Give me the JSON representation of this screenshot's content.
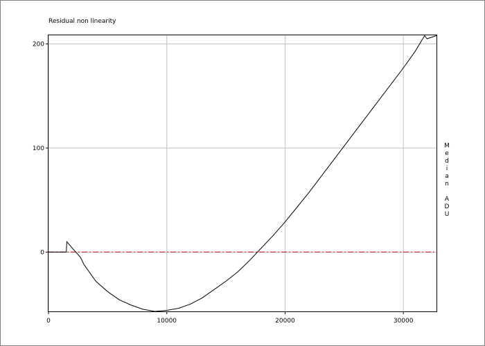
{
  "chart_data": {
    "type": "line",
    "title": "Residual non linearity",
    "y_label": "Median ADU",
    "x": [
      0,
      1500,
      1550,
      2000,
      2700,
      3000,
      4000,
      5000,
      6000,
      7000,
      8000,
      9000,
      10000,
      11000,
      12000,
      13000,
      14000,
      15000,
      16000,
      17000,
      18000,
      19000,
      20000,
      21000,
      22000,
      23000,
      24000,
      25000,
      26000,
      27000,
      28000,
      29000,
      30000,
      31000,
      31800,
      32000,
      32800
    ],
    "series": [
      {
        "color": "#000000",
        "values": [
          0,
          0,
          10,
          4,
          -5,
          -12,
          -28,
          -38,
          -46,
          -51,
          -55,
          -57,
          -56,
          -54,
          -50,
          -44,
          -36,
          -28,
          -19,
          -8,
          4,
          16,
          29,
          43,
          57,
          72,
          87,
          102,
          117,
          132,
          147,
          162,
          177,
          193,
          208,
          205,
          208
        ]
      }
    ],
    "reference_line": {
      "value": 0,
      "color": "#c00000"
    },
    "xlim": [
      0,
      32800
    ],
    "ylim": [
      -57,
      209
    ],
    "xticks": [
      0,
      10000,
      20000,
      30000
    ],
    "yticks": [
      0,
      100,
      200
    ],
    "grid": true
  }
}
